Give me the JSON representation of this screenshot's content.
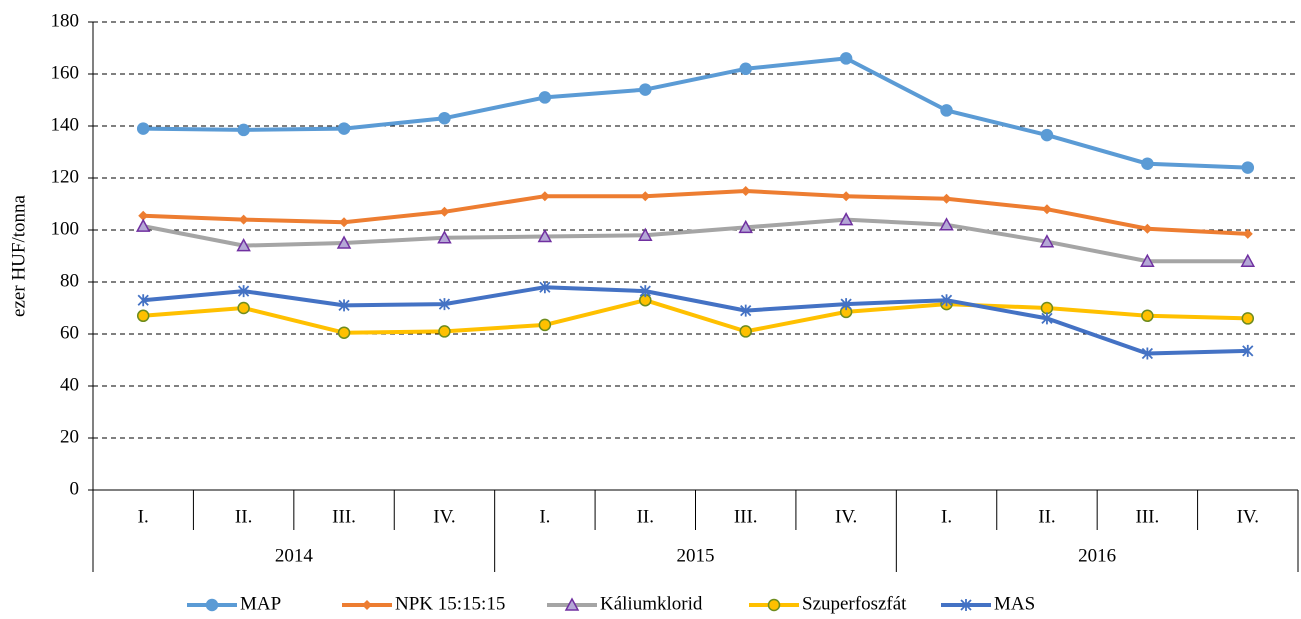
{
  "chart_data": {
    "type": "line",
    "y_label": "ezer HUF/tonna",
    "categories": [
      "I.",
      "II.",
      "III.",
      "IV.",
      "I.",
      "II.",
      "III.",
      "IV.",
      "I.",
      "II.",
      "III.",
      "IV."
    ],
    "category_groups": [
      "2014",
      "2015",
      "2016"
    ],
    "ylim": [
      0,
      180
    ],
    "yticks": [
      0,
      20,
      40,
      60,
      80,
      100,
      120,
      140,
      160,
      180
    ],
    "grid": true,
    "legend": "bottom",
    "series": [
      {
        "name": "MAP",
        "color": "#5b9bd5",
        "marker": "circle",
        "values": [
          139,
          138.5,
          139,
          143,
          151,
          154,
          162,
          166,
          146,
          136.5,
          125.5,
          124
        ]
      },
      {
        "name": "NPK 15:15:15",
        "color": "#ed7d31",
        "marker": "diamond",
        "values": [
          105.5,
          104,
          103,
          107,
          113,
          113,
          115,
          113,
          112,
          108,
          100.5,
          98.5
        ]
      },
      {
        "name": "Káliumklorid",
        "color": "#a5a5a5",
        "marker": "triangle",
        "marker_color": "#7030a0",
        "values": [
          101.5,
          94,
          95,
          97,
          97.5,
          98,
          101,
          104,
          102,
          95.5,
          88,
          88
        ]
      },
      {
        "name": "Szuperfoszfát",
        "color": "#ffc000",
        "marker": "circle",
        "marker_color": "#6e8c1e",
        "values": [
          67,
          70,
          60.5,
          61,
          63.5,
          73,
          61,
          68.5,
          71.5,
          70,
          67,
          66
        ]
      },
      {
        "name": "MAS",
        "color": "#4472c4",
        "marker": "star",
        "values": [
          73,
          76.5,
          71,
          71.5,
          78,
          76.5,
          69,
          71.5,
          73,
          66,
          52.5,
          53.5
        ]
      }
    ]
  }
}
